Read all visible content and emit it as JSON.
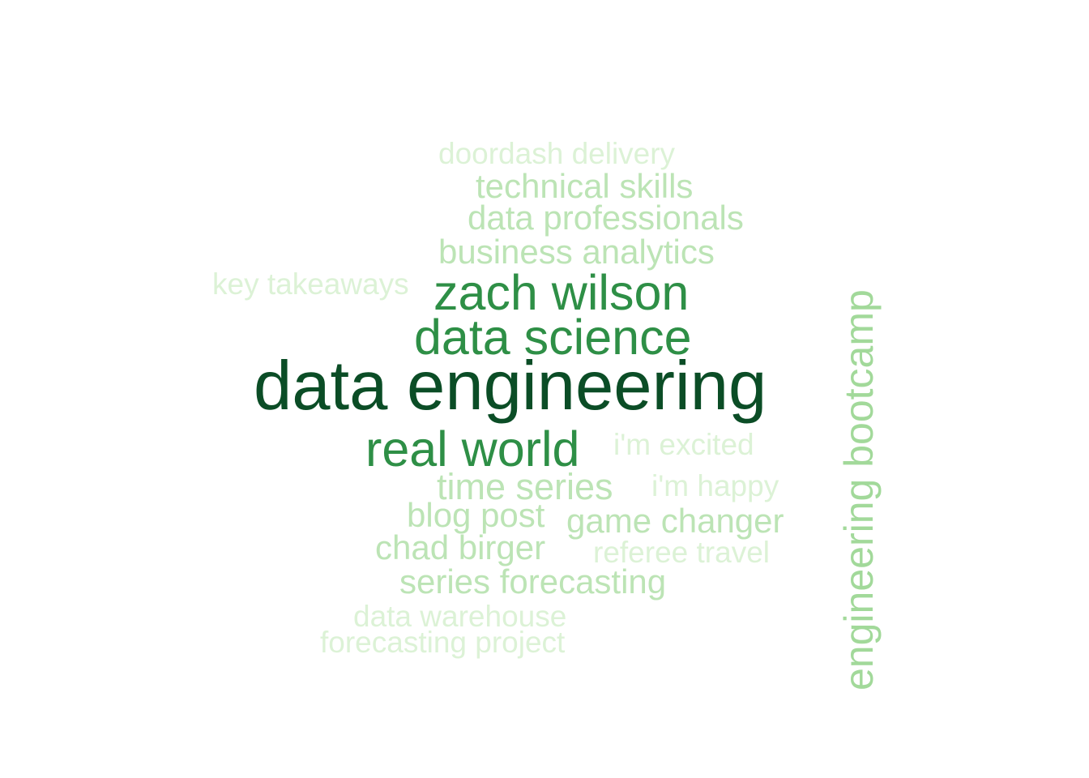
{
  "words": [
    {
      "text": "data engineering",
      "color": "#0b4d26"
    },
    {
      "text": "zach wilson",
      "color": "#2e8f46"
    },
    {
      "text": "data science",
      "color": "#2e8f46"
    },
    {
      "text": "real world",
      "color": "#2e8f46"
    },
    {
      "text": "engineering bootcamp",
      "color": "#a2d99a"
    },
    {
      "text": "doordash delivery",
      "color": "#dcf2d6"
    },
    {
      "text": "technical skills",
      "color": "#bce4b5"
    },
    {
      "text": "data professionals",
      "color": "#bce4b5"
    },
    {
      "text": "business analytics",
      "color": "#bce4b5"
    },
    {
      "text": "key takeaways",
      "color": "#dcf2d6"
    },
    {
      "text": "i'm excited",
      "color": "#dcf2d6"
    },
    {
      "text": "time series",
      "color": "#bce4b5"
    },
    {
      "text": "i'm happy",
      "color": "#dcf2d6"
    },
    {
      "text": "blog post",
      "color": "#bce4b5"
    },
    {
      "text": "game changer",
      "color": "#bce4b5"
    },
    {
      "text": "chad birger",
      "color": "#bce4b5"
    },
    {
      "text": "referee travel",
      "color": "#dcf2d6"
    },
    {
      "text": "series forecasting",
      "color": "#bce4b5"
    },
    {
      "text": "data warehouse",
      "color": "#dcf2d6"
    },
    {
      "text": "forecasting project",
      "color": "#dcf2d6"
    }
  ]
}
